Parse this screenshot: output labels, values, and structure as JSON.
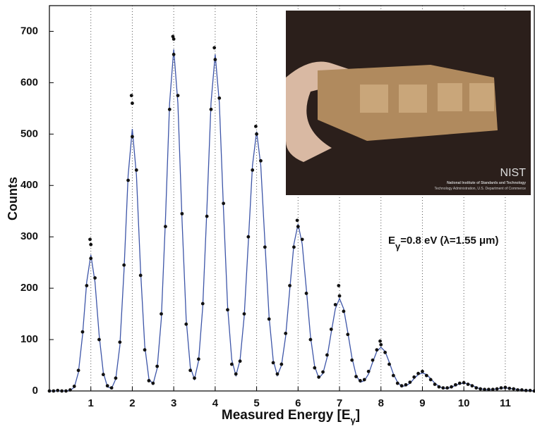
{
  "chart_data": {
    "type": "scatter",
    "xlabel": {
      "main": "Measured Energy [E",
      "sub": "γ",
      "end": "]"
    },
    "ylabel": "Counts",
    "annotation": {
      "main": "E",
      "sub": "γ",
      "rest": "=0.8 eV (λ=1.55 μm)"
    },
    "xlim": [
      0,
      11.7
    ],
    "ylim": [
      0,
      750
    ],
    "xticks": [
      1,
      2,
      3,
      4,
      5,
      6,
      7,
      8,
      9,
      10,
      11
    ],
    "yticks": [
      0,
      100,
      200,
      300,
      400,
      500,
      600,
      700
    ],
    "grid": "x",
    "series": [
      {
        "type": "line",
        "color": "#3d55a8",
        "x": [
          0,
          0.1,
          0.2,
          0.3,
          0.4,
          0.5,
          0.6,
          0.7,
          0.8,
          0.9,
          1,
          1.1,
          1.2,
          1.3,
          1.4,
          1.5,
          1.6,
          1.7,
          1.8,
          1.9,
          2,
          2.1,
          2.2,
          2.3,
          2.4,
          2.5,
          2.6,
          2.7,
          2.8,
          2.9,
          3,
          3.1,
          3.2,
          3.3,
          3.4,
          3.5,
          3.6,
          3.7,
          3.8,
          3.9,
          4,
          4.1,
          4.2,
          4.3,
          4.4,
          4.5,
          4.6,
          4.7,
          4.8,
          4.9,
          5,
          5.1,
          5.2,
          5.3,
          5.4,
          5.5,
          5.6,
          5.7,
          5.8,
          5.9,
          6,
          6.1,
          6.2,
          6.3,
          6.4,
          6.5,
          6.6,
          6.7,
          6.8,
          6.9,
          7,
          7.1,
          7.2,
          7.3,
          7.4,
          7.5,
          7.6,
          7.7,
          7.8,
          7.9,
          8,
          8.1,
          8.2,
          8.3,
          8.4,
          8.5,
          8.6,
          8.7,
          8.8,
          8.9,
          9,
          9.1,
          9.2,
          9.3,
          9.4,
          9.5,
          9.6,
          9.7,
          9.8,
          9.9,
          10,
          10.1,
          10.2,
          10.3,
          10.4,
          10.5,
          10.6,
          10.7,
          10.8,
          10.9,
          11,
          11.1,
          11.2,
          11.3,
          11.4,
          11.5,
          11.6,
          11.7
        ],
        "values": [
          0,
          0,
          0,
          0,
          0,
          1,
          7,
          36,
          109,
          212,
          265,
          212,
          109,
          36,
          8,
          5,
          23,
          88,
          234,
          420,
          510,
          420,
          234,
          88,
          24,
          13,
          44,
          140,
          333,
          560,
          665,
          560,
          333,
          140,
          46,
          23,
          59,
          164,
          354,
          561,
          655,
          561,
          354,
          164,
          61,
          30,
          60,
          145,
          290,
          439,
          505,
          439,
          290,
          145,
          60,
          30,
          50,
          106,
          198,
          286,
          325,
          286,
          198,
          106,
          48,
          25,
          34,
          65,
          114,
          160,
          180,
          160,
          114,
          65,
          31,
          17,
          20,
          33,
          56,
          77,
          85,
          77,
          56,
          33,
          17,
          9,
          10,
          15,
          24,
          32,
          35,
          32,
          24,
          15,
          9,
          5,
          5,
          7,
          11,
          14,
          15,
          14,
          11,
          7,
          4,
          3,
          2,
          3,
          4,
          5,
          6,
          5,
          4,
          3,
          2,
          1,
          1,
          0
        ]
      },
      {
        "type": "scatter",
        "color": "#111111",
        "x": [
          0,
          0.1,
          0.2,
          0.3,
          0.4,
          0.5,
          0.6,
          0.7,
          0.8,
          0.9,
          1,
          1.1,
          1.2,
          1.3,
          1.4,
          1.5,
          1.6,
          1.7,
          1.8,
          1.9,
          2,
          2.1,
          2.2,
          2.3,
          2.4,
          2.5,
          2.6,
          2.7,
          2.8,
          2.9,
          3,
          3.1,
          3.2,
          3.3,
          3.4,
          3.5,
          3.6,
          3.7,
          3.8,
          3.9,
          4,
          4.1,
          4.2,
          4.3,
          4.4,
          4.5,
          4.6,
          4.7,
          4.8,
          4.9,
          5,
          5.1,
          5.2,
          5.3,
          5.4,
          5.5,
          5.6,
          5.7,
          5.8,
          5.9,
          6,
          6.1,
          6.2,
          6.3,
          6.4,
          6.5,
          6.6,
          6.7,
          6.8,
          6.9,
          7,
          7.1,
          7.2,
          7.3,
          7.4,
          7.5,
          7.6,
          7.7,
          7.8,
          7.9,
          8,
          8.1,
          8.2,
          8.3,
          8.4,
          8.5,
          8.6,
          8.7,
          8.8,
          8.9,
          9,
          9.1,
          9.2,
          9.3,
          9.4,
          9.5,
          9.6,
          9.7,
          9.8,
          9.9,
          10,
          10.1,
          10.2,
          10.3,
          10.4,
          10.5,
          10.6,
          10.7,
          10.8,
          10.9,
          11,
          11.1,
          11.2,
          11.3,
          11.4,
          11.5,
          11.6,
          11.7,
          0.98,
          1,
          1.98,
          2,
          2.98,
          3,
          3.98,
          4.98,
          5.98,
          6.98,
          7.98
        ],
        "values": [
          0,
          0,
          1,
          0,
          0,
          2,
          9,
          40,
          115,
          205,
          258,
          220,
          100,
          32,
          10,
          6,
          25,
          95,
          245,
          410,
          495,
          430,
          225,
          80,
          20,
          15,
          48,
          150,
          320,
          548,
          655,
          575,
          345,
          130,
          40,
          25,
          62,
          170,
          340,
          548,
          645,
          570,
          365,
          158,
          52,
          33,
          58,
          150,
          300,
          430,
          500,
          448,
          280,
          140,
          55,
          33,
          52,
          112,
          205,
          280,
          320,
          295,
          190,
          100,
          45,
          27,
          37,
          70,
          120,
          168,
          185,
          155,
          110,
          60,
          28,
          20,
          22,
          38,
          60,
          80,
          90,
          75,
          52,
          30,
          15,
          10,
          12,
          17,
          27,
          34,
          38,
          30,
          22,
          13,
          8,
          6,
          6,
          8,
          12,
          15,
          16,
          13,
          10,
          6,
          4,
          3,
          3,
          3,
          4,
          6,
          7,
          5,
          4,
          2,
          2,
          1,
          1,
          0,
          295,
          285,
          575,
          560,
          690,
          685,
          668,
          515,
          332,
          205,
          97
        ]
      }
    ]
  },
  "inset": {
    "logo": "NIST",
    "line1": "National Institute of Standards and Technology",
    "line2": "Technology Administration, U.S. Department of Commerce"
  }
}
